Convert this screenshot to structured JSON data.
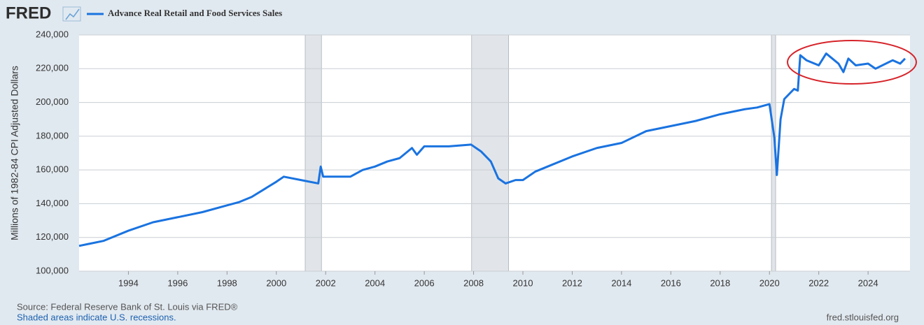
{
  "logo": "FRED",
  "chart_data": {
    "type": "line",
    "y_label": "Millions of 1982-84 CPI Adjusted Dollars",
    "source": "Source: Federal Reserve Bank of St. Louis via FRED®",
    "note": "Shaded areas indicate U.S. recessions.",
    "url": "fred.stlouisfed.org",
    "x": [
      1992.0,
      1993.0,
      1994.0,
      1995.0,
      1996.0,
      1997.0,
      1998.0,
      1998.5,
      1999.0,
      2000.0,
      2000.3,
      2001.0,
      2001.7,
      2001.8,
      2001.9,
      2002.5,
      2003.0,
      2003.5,
      2004.0,
      2004.5,
      2005.0,
      2005.5,
      2005.7,
      2006.0,
      2007.0,
      2007.9,
      2008.3,
      2008.7,
      2009.0,
      2009.3,
      2009.7,
      2010.0,
      2010.5,
      2011.0,
      2012.0,
      2013.0,
      2014.0,
      2015.0,
      2016.0,
      2017.0,
      2018.0,
      2019.0,
      2019.5,
      2020.0,
      2020.2,
      2020.3,
      2020.45,
      2020.6,
      2021.0,
      2021.15,
      2021.25,
      2021.5,
      2022.0,
      2022.3,
      2022.8,
      2023.0,
      2023.2,
      2023.5,
      2024.0,
      2024.3,
      2025.0,
      2025.3,
      2025.5
    ],
    "series": [
      {
        "name": "Advance Real Retail and Food Services Sales",
        "color": "#1a73e0",
        "values": [
          115000,
          118000,
          124000,
          129000,
          132000,
          135000,
          139000,
          141000,
          144000,
          153000,
          156000,
          154000,
          152000,
          162000,
          156000,
          156000,
          156000,
          160000,
          162000,
          165000,
          167000,
          173000,
          169000,
          174000,
          174000,
          175000,
          171000,
          165000,
          155000,
          152000,
          154000,
          154000,
          159000,
          162000,
          168000,
          173000,
          176000,
          183000,
          186000,
          189000,
          193000,
          196000,
          197000,
          199000,
          179000,
          157000,
          190000,
          202000,
          208000,
          207000,
          228000,
          225000,
          222000,
          229000,
          223000,
          218000,
          226000,
          222000,
          223000,
          220000,
          225000,
          223000,
          226000
        ]
      }
    ],
    "recessions": [
      [
        2001.17,
        2001.83
      ],
      [
        2007.92,
        2009.42
      ],
      [
        2020.08,
        2020.25
      ]
    ],
    "recession_color": "#e1e5ea",
    "xlim": [
      1992.0,
      2025.7
    ],
    "xticks": [
      1994,
      1996,
      1998,
      2000,
      2002,
      2004,
      2006,
      2008,
      2010,
      2012,
      2014,
      2016,
      2018,
      2020,
      2022,
      2024
    ],
    "ylim": [
      100000,
      240000
    ],
    "yticks": [
      {
        "value": 100000,
        "label": "100,000"
      },
      {
        "value": 120000,
        "label": "120,000"
      },
      {
        "value": 140000,
        "label": "140,000"
      },
      {
        "value": 160000,
        "label": "160,000"
      },
      {
        "value": 180000,
        "label": "180,000"
      },
      {
        "value": 200000,
        "label": "200,000"
      },
      {
        "value": 220000,
        "label": "220,000"
      },
      {
        "value": 240000,
        "label": "240,000"
      }
    ],
    "grid": true
  }
}
